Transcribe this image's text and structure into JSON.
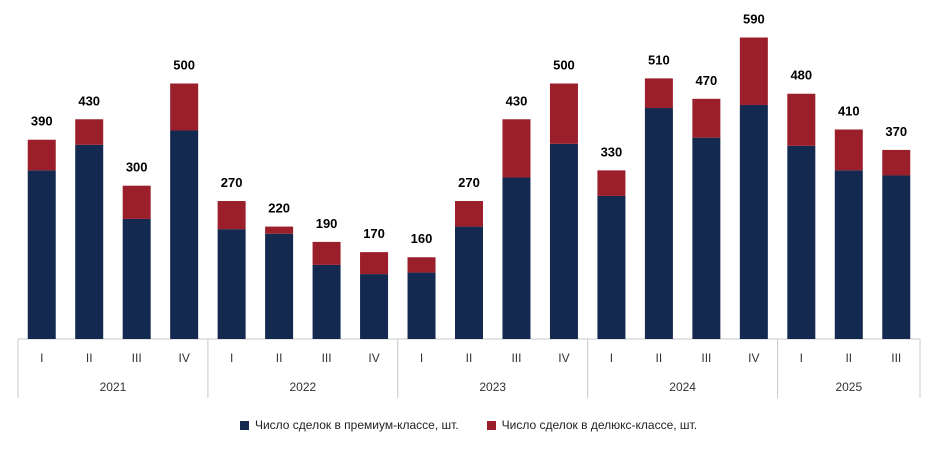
{
  "chart_data": {
    "type": "bar",
    "stacked": true,
    "title": "",
    "xlabel": "",
    "ylabel": "",
    "ylim": [
      0,
      600
    ],
    "grid": false,
    "legend_position": "bottom",
    "categories": [
      "I",
      "II",
      "III",
      "IV",
      "I",
      "II",
      "III",
      "IV",
      "I",
      "II",
      "III",
      "IV",
      "I",
      "II",
      "III",
      "IV",
      "I",
      "II",
      "III"
    ],
    "groups": [
      {
        "label": "2021",
        "count": 4
      },
      {
        "label": "2022",
        "count": 4
      },
      {
        "label": "2023",
        "count": 4
      },
      {
        "label": "2024",
        "count": 4
      },
      {
        "label": "2025",
        "count": 3
      }
    ],
    "totals": [
      390,
      430,
      300,
      500,
      270,
      220,
      190,
      170,
      160,
      270,
      430,
      500,
      330,
      510,
      470,
      590,
      480,
      410,
      370
    ],
    "series": [
      {
        "name": "Число сделок в премиум-классе, шт.",
        "color": "#14294f",
        "values": [
          330,
          380,
          235,
          408,
          215,
          206,
          145,
          127,
          130,
          220,
          316,
          382,
          280,
          452,
          394,
          458,
          378,
          330,
          320
        ]
      },
      {
        "name": "Число сделок в делюкс-классе, шт.",
        "color": "#9a1f2b",
        "values": [
          60,
          50,
          65,
          92,
          55,
          14,
          45,
          43,
          30,
          50,
          114,
          118,
          50,
          58,
          76,
          132,
          102,
          80,
          50
        ]
      }
    ]
  }
}
